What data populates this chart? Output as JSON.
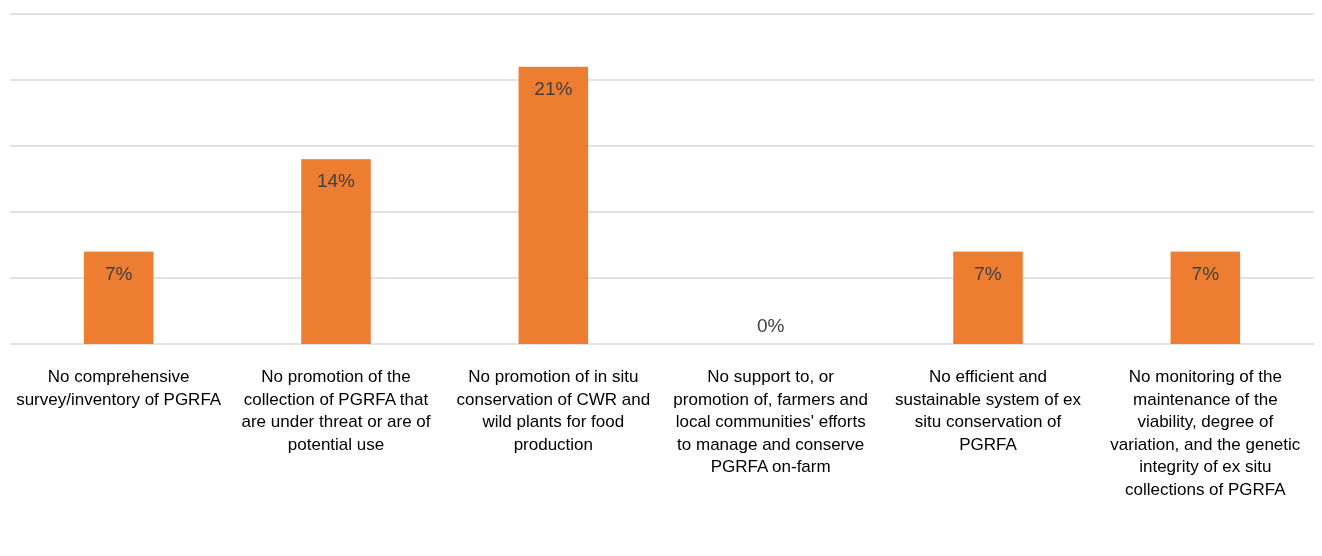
{
  "chart_data": {
    "type": "bar",
    "categories": [
      "No comprehensive survey/inventory of PGRFA",
      "No promotion of the collection of PGRFA that are under threat or are of potential use",
      "No promotion of in situ conservation of CWR and wild plants for food production",
      "No support to, or promotion of, farmers and local communities' efforts to manage and conserve PGRFA on-farm",
      "No efficient and sustainable system of ex situ conservation of PGRFA",
      "No monitoring of the maintenance of the viability, degree of variation, and the genetic integrity of ex situ collections of PGRFA"
    ],
    "values": [
      7,
      14,
      21,
      0,
      7,
      7
    ],
    "value_labels": [
      "7%",
      "14%",
      "21%",
      "0%",
      "7%",
      "7%"
    ],
    "color": "#ed7d31",
    "ylim": [
      0,
      25
    ],
    "yticks": [
      {
        "value": 0,
        "label": null
      },
      {
        "value": 5,
        "label": null
      },
      {
        "value": 10,
        "label": null
      },
      {
        "value": 15,
        "label": null
      },
      {
        "value": 20,
        "label": null
      },
      {
        "value": 25,
        "label": null
      }
    ],
    "grid": true,
    "tick_labels": "x"
  }
}
